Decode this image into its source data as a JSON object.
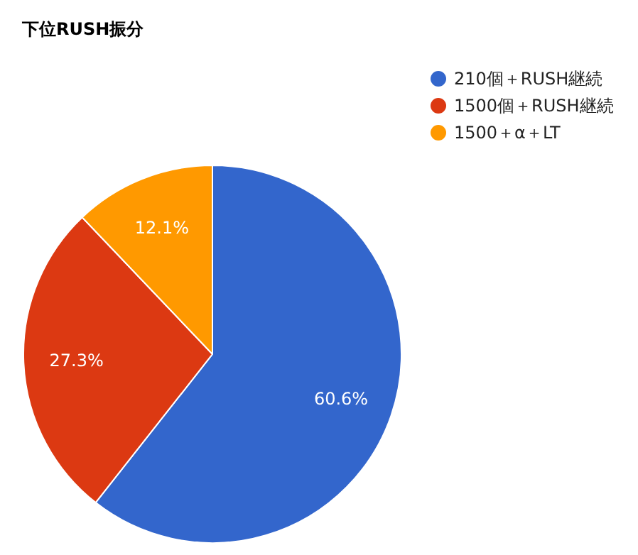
{
  "chart_data": {
    "type": "pie",
    "title": "下位RUSH振分",
    "categories": [
      "210個＋RUSH継続",
      "1500個＋RUSH継続",
      "1500＋α＋LT"
    ],
    "values": [
      60.6,
      27.3,
      12.1
    ],
    "colors": [
      "#3366cc",
      "#dc3912",
      "#ff9900"
    ],
    "value_labels": [
      "60.6%",
      "27.3%",
      "12.1%"
    ],
    "legend": "top right"
  }
}
